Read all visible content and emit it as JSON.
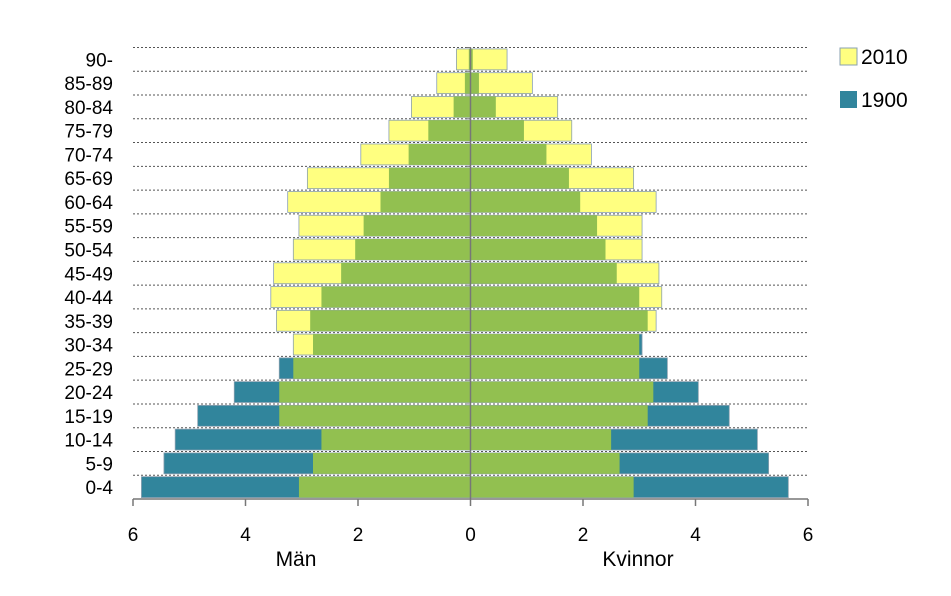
{
  "chart_data": {
    "type": "bar",
    "orientation": "horizontal",
    "layout": "population-pyramid",
    "categories": [
      "0-4",
      "5-9",
      "10-14",
      "15-19",
      "20-24",
      "25-29",
      "30-34",
      "35-39",
      "40-44",
      "45-49",
      "50-54",
      "55-59",
      "60-64",
      "65-69",
      "70-74",
      "75-79",
      "80-84",
      "85-89",
      "90-"
    ],
    "xlabel_left": "Män",
    "xlabel_right": "Kvinnor",
    "xlim": [
      -6,
      6
    ],
    "xticks": [
      -6,
      -4,
      -2,
      0,
      2,
      4,
      6
    ],
    "xtick_labels": [
      "6",
      "4",
      "2",
      "0",
      "2",
      "4",
      "6"
    ],
    "grid": "horizontal-dotted",
    "legend_position": "right",
    "series": [
      {
        "name": "1900",
        "color": "#31859C",
        "men": [
          5.85,
          5.45,
          5.25,
          4.85,
          4.2,
          3.4,
          2.8,
          2.85,
          2.65,
          2.3,
          2.05,
          1.9,
          1.6,
          1.45,
          1.1,
          0.75,
          0.3,
          0.1,
          0.03
        ],
        "women": [
          5.65,
          5.3,
          5.1,
          4.6,
          4.05,
          3.5,
          3.05,
          3.15,
          3.0,
          2.6,
          2.4,
          2.25,
          1.95,
          1.75,
          1.35,
          0.95,
          0.45,
          0.15,
          0.04
        ]
      },
      {
        "name": "2010",
        "color": "#FFFF80",
        "men": [
          3.05,
          2.8,
          2.65,
          3.4,
          3.4,
          3.15,
          3.15,
          3.45,
          3.55,
          3.5,
          3.15,
          3.05,
          3.25,
          2.9,
          1.95,
          1.45,
          1.05,
          0.6,
          0.25
        ],
        "women": [
          2.9,
          2.65,
          2.5,
          3.15,
          3.25,
          3.0,
          3.0,
          3.3,
          3.4,
          3.35,
          3.05,
          3.05,
          3.3,
          2.9,
          2.15,
          1.8,
          1.55,
          1.1,
          0.65
        ]
      }
    ],
    "overlap_color": "#92C050"
  }
}
